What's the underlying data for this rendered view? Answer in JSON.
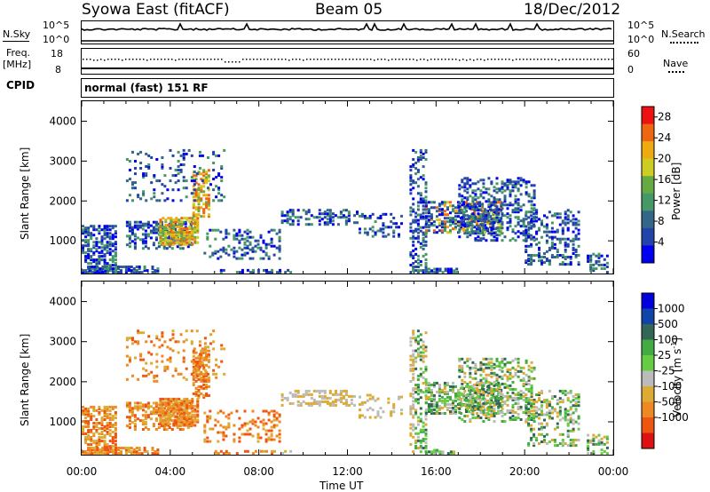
{
  "header": {
    "station": "Syowa East (fitACF)",
    "beam": "Beam 05",
    "date": "18/Dec/2012"
  },
  "top_panels": {
    "nsky_label": "N.Sky",
    "nsky_ticks": [
      "10^5",
      "10^0"
    ],
    "nsearch_label": "N.Search",
    "nsearch_ticks": [
      "10^5",
      "10^0"
    ],
    "freq_label_1": "Freq.",
    "freq_label_2": "[MHz]",
    "freq_ticks": [
      "18",
      "8"
    ],
    "nave_label": "Nave",
    "nave_ticks": [
      "60",
      "0"
    ],
    "cpid_label": "CPID",
    "cpid_value": "normal (fast) 151 RF"
  },
  "colors": {
    "power": [
      "#0000ee",
      "#2244aa",
      "#336688",
      "#449966",
      "#66aa44",
      "#cccc22",
      "#eeaa11",
      "#ee6611",
      "#ee1111"
    ],
    "velocity": [
      "#0000dd",
      "#1144aa",
      "#336655",
      "#44aa44",
      "#66cc44",
      "#bbbbbb",
      "#ddaa33",
      "#ee8822",
      "#ee5511",
      "#dd1111"
    ]
  },
  "chart_data": [
    {
      "type": "heatmap",
      "name_label": "Power [dB]",
      "ylabel": "Slant Range [km]",
      "xlabel": "Time UT",
      "yticks": [
        "1000",
        "2000",
        "3000",
        "4000"
      ],
      "xticks": [
        "00:00",
        "04:00",
        "08:00",
        "12:00",
        "16:00",
        "20:00",
        "00:00"
      ],
      "ylim": [
        180,
        4500
      ],
      "xlim_hours": [
        0,
        24
      ],
      "colorbar_ticks": [
        "4",
        "8",
        "12",
        "16",
        "20",
        "24",
        "28"
      ],
      "colorbar_range": [
        0,
        30
      ],
      "grid": false
    },
    {
      "type": "heatmap",
      "name_label": "Velocity [m s^-1]",
      "ylabel": "Slant Range [km]",
      "xlabel": "Time UT",
      "yticks": [
        "1000",
        "2000",
        "3000",
        "4000"
      ],
      "xticks": [
        "00:00",
        "04:00",
        "08:00",
        "12:00",
        "16:00",
        "20:00",
        "00:00"
      ],
      "ylim": [
        180,
        4500
      ],
      "xlim_hours": [
        0,
        24
      ],
      "colorbar_ticks": [
        "1000",
        "500",
        "100",
        "25",
        "-25",
        "-100",
        "-500",
        "-1000"
      ],
      "grid": false
    }
  ]
}
